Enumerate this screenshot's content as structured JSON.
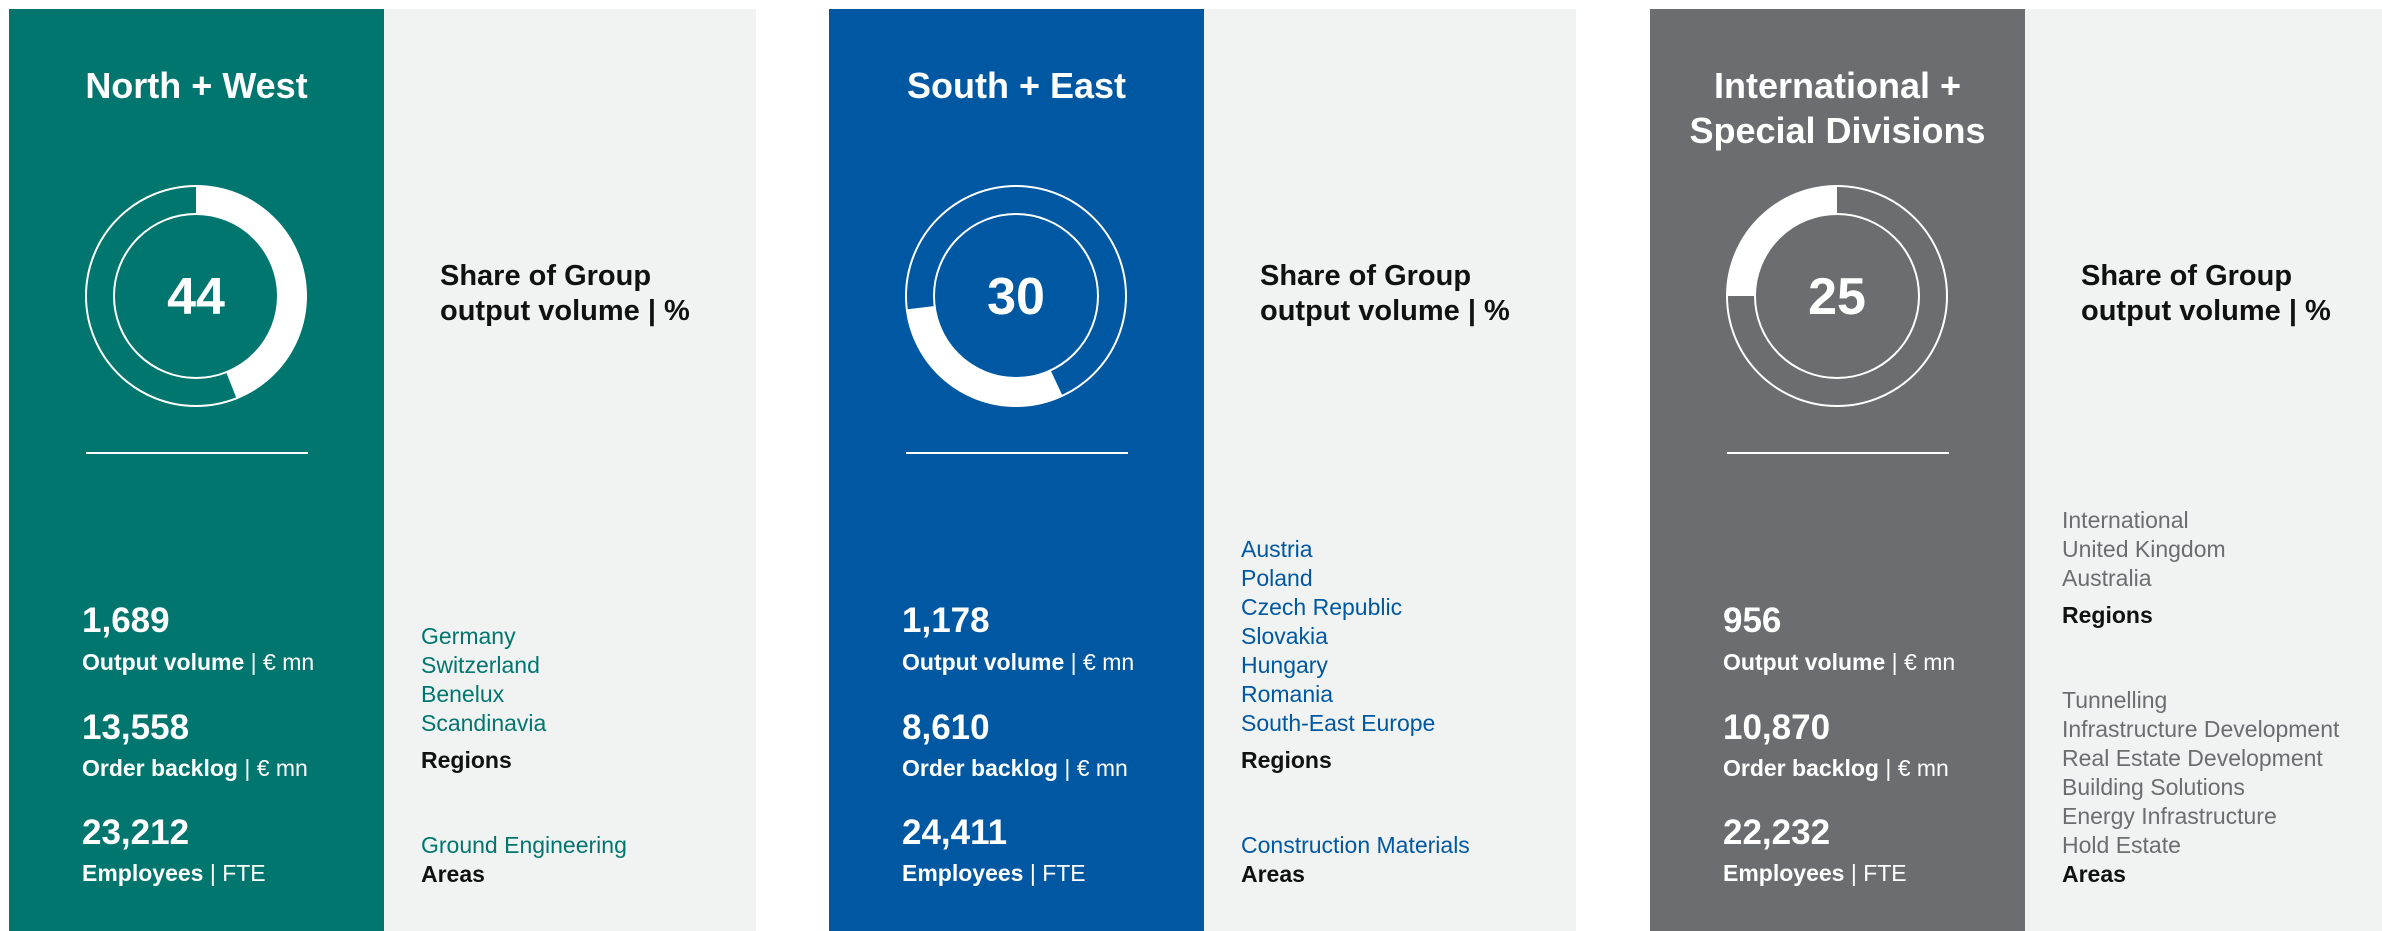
{
  "panels": [
    {
      "title": "North + West",
      "share": 44,
      "share_label": "Share of Group output volume | %",
      "stats": [
        {
          "value": "1,689",
          "label": "Output volume",
          "unit": "| € mn"
        },
        {
          "value": "13,558",
          "label": "Order backlog",
          "unit": "| € mn"
        },
        {
          "value": "23,212",
          "label": "Employees",
          "unit": "| FTE"
        }
      ],
      "regions": [
        "Germany",
        "Switzerland",
        "Benelux",
        "Scandinavia"
      ],
      "regions_heading": "Regions",
      "areas": [
        "Ground Engineering"
      ],
      "areas_heading": "Areas"
    },
    {
      "title": "South + East",
      "share": 30,
      "share_label": "Share of Group output volume | %",
      "stats": [
        {
          "value": "1,178",
          "label": "Output volume",
          "unit": "| € mn"
        },
        {
          "value": "8,610",
          "label": "Order backlog",
          "unit": "| € mn"
        },
        {
          "value": "24,411",
          "label": "Employees",
          "unit": "| FTE"
        }
      ],
      "regions": [
        "Austria",
        "Poland",
        "Czech Republic",
        "Slovakia",
        "Hungary",
        "Romania",
        "South-East Europe"
      ],
      "regions_heading": "Regions",
      "areas": [
        "Construction Materials"
      ],
      "areas_heading": "Areas"
    },
    {
      "title": "International + Special Divisions",
      "share": 25,
      "share_label": "Share of Group output volume | %",
      "stats": [
        {
          "value": "956",
          "label": "Output volume",
          "unit": "| € mn"
        },
        {
          "value": "10,870",
          "label": "Order backlog",
          "unit": "| € mn"
        },
        {
          "value": "22,232",
          "label": "Employees",
          "unit": "| FTE"
        }
      ],
      "regions": [
        "International",
        "United Kingdom",
        "Australia"
      ],
      "regions_heading": "Regions",
      "areas": [
        "Tunnelling",
        "Infrastructure Development",
        "Real Estate Development",
        "Building Solutions",
        "Energy Infrastructure",
        "Hold Estate"
      ],
      "areas_heading": "Areas"
    }
  ]
}
